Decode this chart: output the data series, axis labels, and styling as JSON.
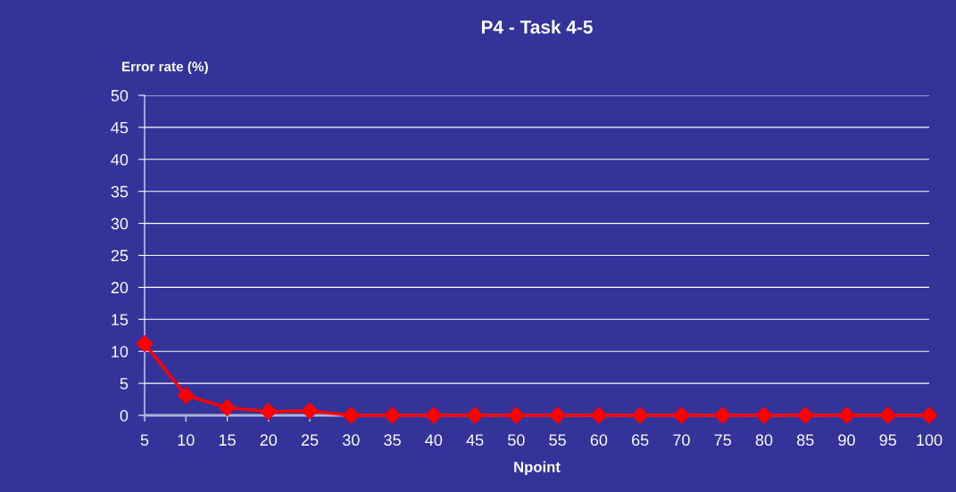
{
  "chart_data": {
    "type": "line",
    "title": "P4 - Task 4-5",
    "xlabel": "Npoint",
    "ylabel": "Error rate (%)",
    "categories": [
      "5",
      "10",
      "15",
      "20",
      "25",
      "30",
      "35",
      "40",
      "45",
      "50",
      "55",
      "60",
      "65",
      "70",
      "75",
      "80",
      "85",
      "90",
      "95",
      "100"
    ],
    "series": [
      {
        "color": "#ff0000",
        "values": [
          11.2,
          3.1,
          1.2,
          0.6,
          0.7,
          0,
          0,
          0,
          0,
          0,
          0,
          0,
          0,
          0,
          0,
          0,
          0,
          0,
          0,
          0
        ]
      }
    ],
    "ylim": [
      0,
      50
    ],
    "yticks": [
      0,
      5,
      10,
      15,
      20,
      25,
      30,
      35,
      40,
      45,
      50
    ],
    "grid": "y",
    "marker": "diamond",
    "line_style": "solid"
  }
}
